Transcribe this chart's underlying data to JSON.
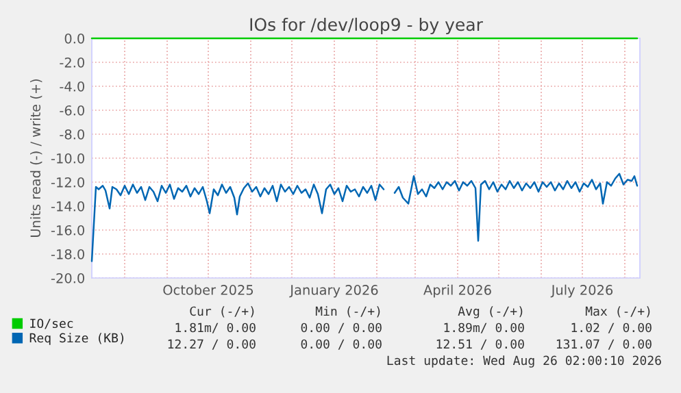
{
  "chart_data": {
    "type": "line",
    "title": "IOs for /dev/loop9 - by year",
    "ylabel": "Units read (-) / write (+)",
    "xlim": [
      "2025-07-08",
      "2026-08-12"
    ],
    "ylim": [
      -20,
      0
    ],
    "xticks": [
      {
        "value": "2025-08-01",
        "label": null
      },
      {
        "value": "2025-09-01",
        "label": null
      },
      {
        "value": "2025-10-01",
        "label": "October 2025"
      },
      {
        "value": "2025-11-01",
        "label": null
      },
      {
        "value": "2025-12-01",
        "label": null
      },
      {
        "value": "2026-01-01",
        "label": "January 2026"
      },
      {
        "value": "2026-02-01",
        "label": null
      },
      {
        "value": "2026-03-01",
        "label": null
      },
      {
        "value": "2026-04-01",
        "label": "April 2026"
      },
      {
        "value": "2026-05-01",
        "label": null
      },
      {
        "value": "2026-06-01",
        "label": null
      },
      {
        "value": "2026-07-01",
        "label": "July 2026"
      },
      {
        "value": "2026-08-01",
        "label": null
      }
    ],
    "yticks": [
      {
        "value": 0,
        "label": "0.0"
      },
      {
        "value": -2,
        "label": "-2.0"
      },
      {
        "value": -4,
        "label": "-4.0"
      },
      {
        "value": -6,
        "label": "-6.0"
      },
      {
        "value": -8,
        "label": "-8.0"
      },
      {
        "value": -10,
        "label": "-10.0"
      },
      {
        "value": -12,
        "label": "-12.0"
      },
      {
        "value": -14,
        "label": "-14.0"
      },
      {
        "value": -16,
        "label": "-16.0"
      },
      {
        "value": -18,
        "label": "-18.0"
      },
      {
        "value": -20,
        "label": "-20.0"
      }
    ],
    "grid": true,
    "legend": "bottom",
    "series": [
      {
        "name": "IO/sec",
        "color": "#00cc00",
        "x": [
          "2025-07-08",
          "2026-08-10"
        ],
        "values": [
          0,
          0
        ]
      },
      {
        "name": "Req Size (KB)",
        "color": "#0066b3",
        "x": [
          "2025-07-08",
          "2025-07-11",
          "2025-07-13",
          "2025-07-16",
          "2025-07-18",
          "2025-07-21",
          "2025-07-23",
          "2025-07-26",
          "2025-07-29",
          "2025-08-01",
          "2025-08-04",
          "2025-08-07",
          "2025-08-10",
          "2025-08-13",
          "2025-08-16",
          "2025-08-19",
          "2025-08-22",
          "2025-08-25",
          "2025-08-28",
          "2025-08-31",
          "2025-09-03",
          "2025-09-06",
          "2025-09-09",
          "2025-09-12",
          "2025-09-15",
          "2025-09-18",
          "2025-09-21",
          "2025-09-24",
          "2025-09-27",
          "2025-09-30",
          "2025-10-02",
          "2025-10-05",
          "2025-10-08",
          "2025-10-11",
          "2025-10-14",
          "2025-10-17",
          "2025-10-20",
          "2025-10-22",
          "2025-10-24",
          "2025-10-27",
          "2025-10-30",
          "2025-11-02",
          "2025-11-05",
          "2025-11-08",
          "2025-11-11",
          "2025-11-14",
          "2025-11-17",
          "2025-11-20",
          "2025-11-23",
          "2025-11-26",
          "2025-11-29",
          "2025-12-02",
          "2025-12-05",
          "2025-12-08",
          "2025-12-11",
          "2025-12-14",
          "2025-12-17",
          "2025-12-20",
          "2025-12-23",
          "2025-12-26",
          "2025-12-29",
          "2026-01-01",
          "2026-01-04",
          "2026-01-07",
          "2026-01-10",
          "2026-01-13",
          "2026-01-16",
          "2026-01-19",
          "2026-01-22",
          "2026-01-25",
          "2026-01-28",
          "2026-01-31",
          "2026-02-03",
          "2026-02-06",
          "2026-02-10",
          "2026-02-14",
          "2026-02-17",
          "2026-02-20",
          "2026-02-24",
          "2026-02-28",
          "2026-03-03",
          "2026-03-06",
          "2026-03-09",
          "2026-03-12",
          "2026-03-15",
          "2026-03-18",
          "2026-03-21",
          "2026-03-24",
          "2026-03-27",
          "2026-03-30",
          "2026-04-02",
          "2026-04-05",
          "2026-04-08",
          "2026-04-11",
          "2026-04-14",
          "2026-04-16",
          "2026-04-18",
          "2026-04-21",
          "2026-04-24",
          "2026-04-27",
          "2026-04-30",
          "2026-05-03",
          "2026-05-06",
          "2026-05-09",
          "2026-05-12",
          "2026-05-15",
          "2026-05-18",
          "2026-05-21",
          "2026-05-24",
          "2026-05-27",
          "2026-05-30",
          "2026-06-02",
          "2026-06-05",
          "2026-06-08",
          "2026-06-11",
          "2026-06-14",
          "2026-06-17",
          "2026-06-20",
          "2026-06-23",
          "2026-06-26",
          "2026-06-29",
          "2026-07-02",
          "2026-07-05",
          "2026-07-08",
          "2026-07-11",
          "2026-07-14",
          "2026-07-16",
          "2026-07-19",
          "2026-07-22",
          "2026-07-25",
          "2026-07-28",
          "2026-07-31",
          "2026-08-03",
          "2026-08-06",
          "2026-08-08",
          "2026-08-10"
        ],
        "values": [
          -18.6,
          -12.4,
          -12.6,
          -12.3,
          -12.7,
          -14.2,
          -12.4,
          -12.6,
          -13.1,
          -12.3,
          -13.0,
          -12.2,
          -12.9,
          -12.4,
          -13.5,
          -12.4,
          -12.8,
          -13.6,
          -12.3,
          -12.9,
          -12.2,
          -13.4,
          -12.5,
          -12.8,
          -12.3,
          -13.2,
          -12.5,
          -13.0,
          -12.4,
          -13.6,
          -14.6,
          -12.6,
          -13.1,
          -12.2,
          -12.9,
          -12.4,
          -13.3,
          -14.7,
          -13.2,
          -12.5,
          -12.1,
          -12.8,
          -12.4,
          -13.2,
          -12.5,
          -13.0,
          -12.3,
          -13.6,
          -12.2,
          -12.8,
          -12.4,
          -13.0,
          -12.3,
          -12.9,
          -12.6,
          -13.3,
          -12.2,
          -13.0,
          -14.6,
          -12.6,
          -12.2,
          -13.0,
          -12.5,
          -13.6,
          -12.3,
          -12.8,
          -12.6,
          -13.2,
          -12.4,
          -12.9,
          -12.3,
          -13.5,
          -12.2,
          -12.6,
          null,
          -12.9,
          -12.4,
          -13.3,
          -13.8,
          -11.5,
          -13.0,
          -12.6,
          -13.2,
          -12.2,
          -12.5,
          -12.0,
          -12.6,
          -12.0,
          -12.3,
          -11.9,
          -12.7,
          -12.0,
          -12.3,
          -11.9,
          -12.5,
          -16.9,
          -12.2,
          -11.9,
          -12.6,
          -12.0,
          -12.8,
          -12.2,
          -12.6,
          -11.9,
          -12.5,
          -12.0,
          -12.7,
          -12.1,
          -12.5,
          -12.0,
          -12.8,
          -12.0,
          -12.4,
          -12.0,
          -12.7,
          -12.1,
          -12.6,
          -11.9,
          -12.5,
          -12.0,
          -12.8,
          -12.1,
          -12.4,
          -11.8,
          -12.6,
          -12.1,
          -13.8,
          -12.0,
          -12.3,
          -11.7,
          -11.3,
          -12.2,
          -11.8,
          -11.9,
          -11.5,
          -12.3
        ]
      }
    ],
    "annotations": [
      "Cur (-/+)",
      "Min (-/+)",
      "Avg (-/+)",
      "Max (-/+)",
      "1.81m/ 0.00",
      "0.00 / 0.00",
      "1.89m/ 0.00",
      "1.02 / 0.00",
      "12.27 / 0.00",
      "0.00 / 0.00",
      "12.51 / 0.00",
      "131.07 / 0.00",
      "Last update: Wed Aug 26 02:00:10 2026"
    ]
  }
}
